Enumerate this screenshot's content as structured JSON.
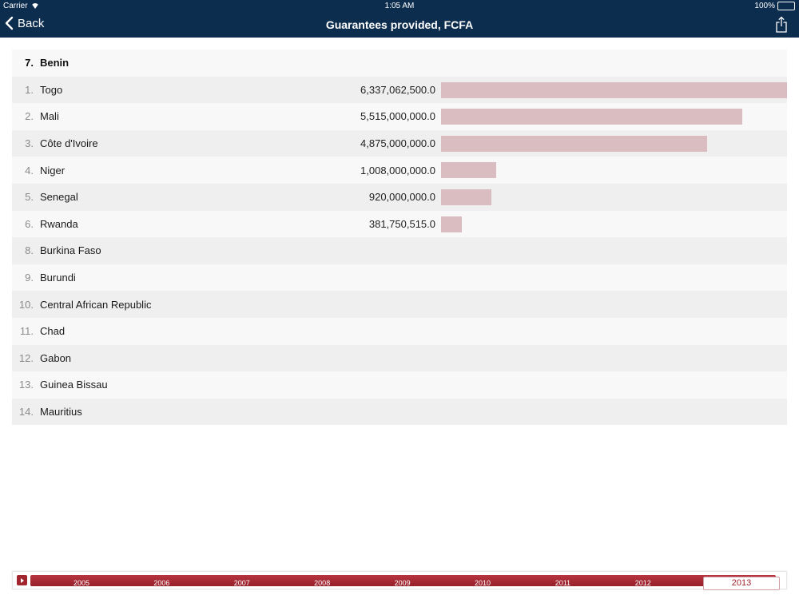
{
  "status_bar": {
    "carrier": "Carrier",
    "time": "1:05 AM",
    "battery": "100%"
  },
  "nav": {
    "back_label": "Back",
    "title": "Guarantees provided, FCFA",
    "share_icon": "share-icon"
  },
  "list": {
    "header": {
      "rank": "7.",
      "name": "Benin"
    },
    "rows": [
      {
        "rank": "1.",
        "name": "Togo",
        "value": "6,337,062,500.0",
        "amount": 6337062500
      },
      {
        "rank": "2.",
        "name": "Mali",
        "value": "5,515,000,000.0",
        "amount": 5515000000
      },
      {
        "rank": "3.",
        "name": "Côte d'Ivoire",
        "value": "4,875,000,000.0",
        "amount": 4875000000
      },
      {
        "rank": "4.",
        "name": "Niger",
        "value": "1,008,000,000.0",
        "amount": 1008000000
      },
      {
        "rank": "5.",
        "name": "Senegal",
        "value": "920,000,000.0",
        "amount": 920000000
      },
      {
        "rank": "6.",
        "name": "Rwanda",
        "value": "381,750,515.0",
        "amount": 381750515
      },
      {
        "rank": "8.",
        "name": "Burkina Faso",
        "value": "",
        "amount": 0
      },
      {
        "rank": "9.",
        "name": "Burundi",
        "value": "",
        "amount": 0
      },
      {
        "rank": "10.",
        "name": "Central African Republic",
        "value": "",
        "amount": 0
      },
      {
        "rank": "11.",
        "name": "Chad",
        "value": "",
        "amount": 0
      },
      {
        "rank": "12.",
        "name": "Gabon",
        "value": "",
        "amount": 0
      },
      {
        "rank": "13.",
        "name": "Guinea Bissau",
        "value": "",
        "amount": 0
      },
      {
        "rank": "14.",
        "name": "Mauritius",
        "value": "",
        "amount": 0
      }
    ],
    "bar_color": "#d9bdc1"
  },
  "timeline": {
    "play_icon": "play-icon",
    "years": [
      "2005",
      "2006",
      "2007",
      "2008",
      "2009",
      "2010",
      "2011",
      "2012"
    ],
    "selected_year": "2013",
    "accent_color": "#a1242e"
  }
}
